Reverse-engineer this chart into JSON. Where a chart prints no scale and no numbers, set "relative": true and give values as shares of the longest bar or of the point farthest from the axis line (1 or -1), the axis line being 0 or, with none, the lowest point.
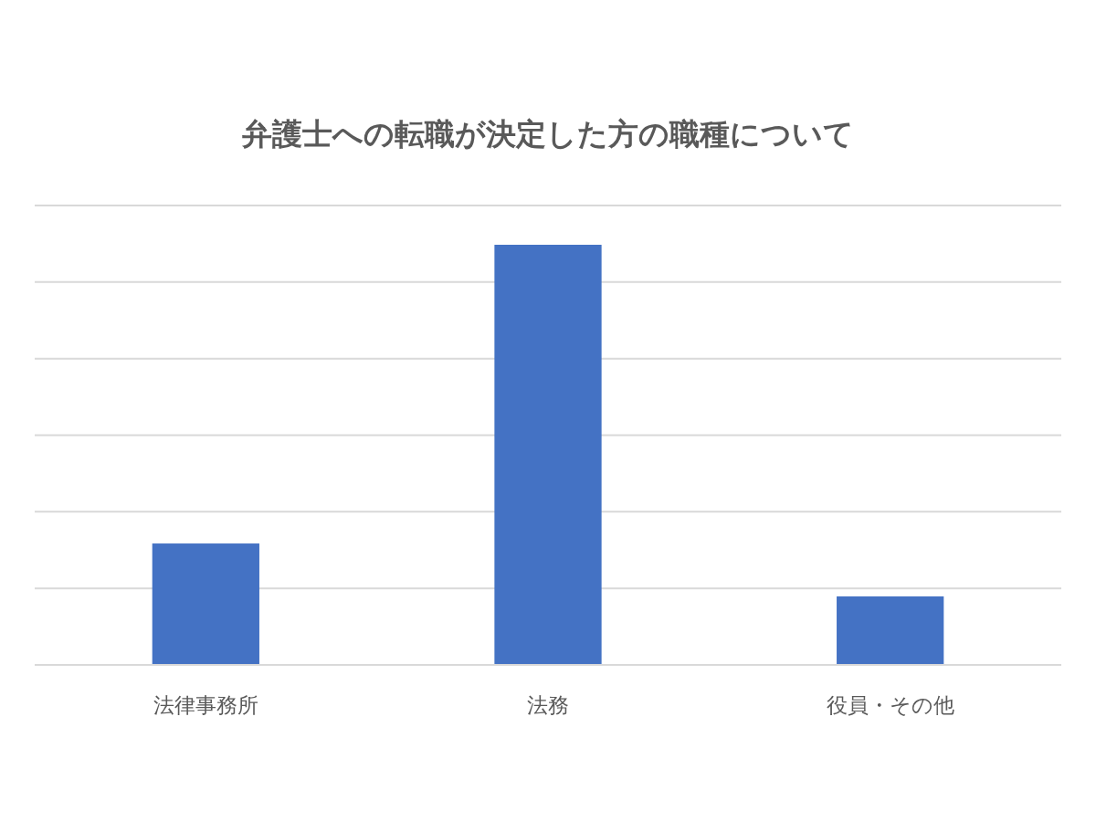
{
  "chart_data": {
    "type": "bar",
    "title": "弁護士への転職が決定した方の職種について",
    "categories": [
      "法律事務所",
      "法務",
      "役員・その他"
    ],
    "values": [
      0.289,
      1,
      0.163
    ],
    "color": "#4472c4",
    "relative": true,
    "grid": true
  }
}
